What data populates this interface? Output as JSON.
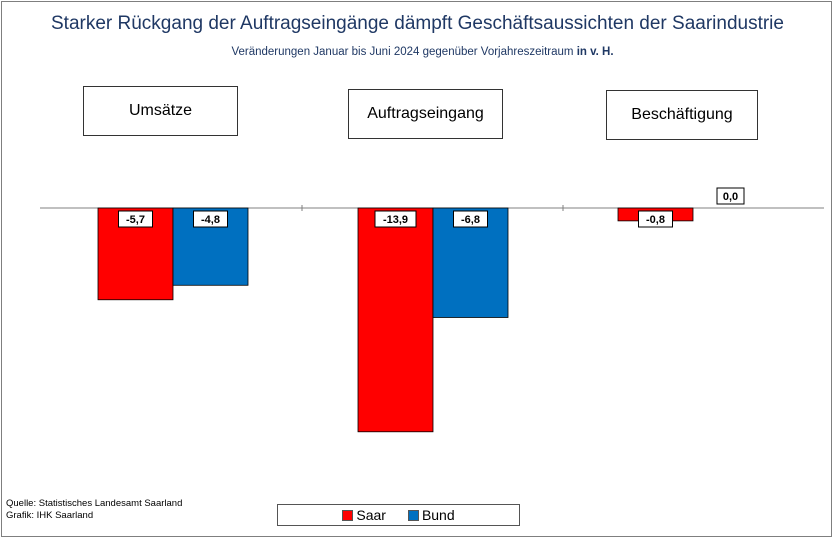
{
  "title": "Starker Rückgang der Auftragseingänge dämpft Geschäftsaussichten der Saarindustrie",
  "subtitle_prefix": "Veränderungen Januar bis Juni 2024 gegenüber Vorjahreszeitraum ",
  "subtitle_bold": "in v. H.",
  "footer": {
    "source": "Quelle: Statistisches Landesamt Saarland",
    "graphic": "Grafik: IHK Saarland"
  },
  "colors": {
    "saar": "#ff0000",
    "bund": "#0070c0"
  },
  "chart_data": {
    "type": "bar",
    "categories": [
      "Umsätze",
      "Auftragseingang",
      "Beschäftigung"
    ],
    "series": [
      {
        "name": "Saar",
        "values": [
          -5.7,
          -13.9,
          -0.8
        ],
        "labels": [
          "-5,7",
          "-13,9",
          "-0,8"
        ]
      },
      {
        "name": "Bund",
        "values": [
          -4.8,
          -6.8,
          0.0
        ],
        "labels": [
          "-4,8",
          "-6,8",
          "0,0"
        ]
      }
    ],
    "ylim": [
      -14,
      0
    ],
    "legend": "bottom",
    "grid": false
  }
}
